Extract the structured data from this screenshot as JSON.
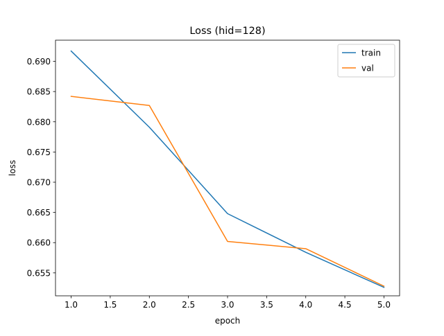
{
  "chart_data": {
    "type": "line",
    "title": "Loss (hid=128)",
    "xlabel": "epoch",
    "ylabel": "loss",
    "x": [
      1.0,
      2.0,
      3.0,
      4.0,
      5.0
    ],
    "xlim": [
      0.8,
      5.2
    ],
    "ylim": [
      0.6512,
      0.6935
    ],
    "xticks": [
      1.0,
      1.5,
      2.0,
      2.5,
      3.0,
      3.5,
      4.0,
      4.5,
      5.0
    ],
    "xtick_labels": [
      "1.0",
      "1.5",
      "2.0",
      "2.5",
      "3.0",
      "3.5",
      "4.0",
      "4.5",
      "5.0"
    ],
    "yticks": [
      0.655,
      0.66,
      0.665,
      0.67,
      0.675,
      0.68,
      0.685,
      0.69
    ],
    "ytick_labels": [
      "0.655",
      "0.660",
      "0.665",
      "0.670",
      "0.675",
      "0.680",
      "0.685",
      "0.690"
    ],
    "grid": false,
    "legend_position": "top-right",
    "series": [
      {
        "name": "train",
        "color": "#1f77b4",
        "values": [
          0.6917,
          0.6791,
          0.6648,
          0.6584,
          0.6526
        ]
      },
      {
        "name": "val",
        "color": "#ff7f0e",
        "values": [
          0.6842,
          0.6827,
          0.6602,
          0.659,
          0.6528
        ]
      }
    ]
  }
}
